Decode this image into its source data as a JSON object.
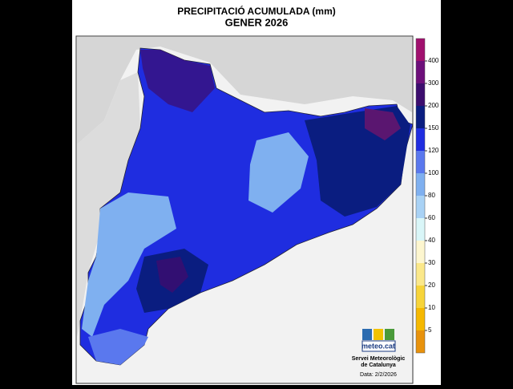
{
  "header": {
    "title": "PRECIPITACIÓ ACUMULADA (mm)",
    "subtitle": "GENER 2026"
  },
  "legend": {
    "colors": [
      "#e8920c",
      "#f5b800",
      "#f7d43a",
      "#fbe88a",
      "#fdf6cf",
      "#d9f6f8",
      "#a9d2f5",
      "#7fb0f0",
      "#5a78ee",
      "#1f2de0",
      "#0a1d80",
      "#3c0d6e",
      "#6d0f7a",
      "#a0106e"
    ],
    "labels": [
      "5",
      "10",
      "20",
      "30",
      "40",
      "60",
      "80",
      "100",
      "120",
      "150",
      "200",
      "300",
      "400"
    ]
  },
  "credit": {
    "logo": "meteo.cat",
    "line1": "Servei Meteorològic",
    "line2": "de Catalunya",
    "date": "Data: 2/2/2026"
  }
}
